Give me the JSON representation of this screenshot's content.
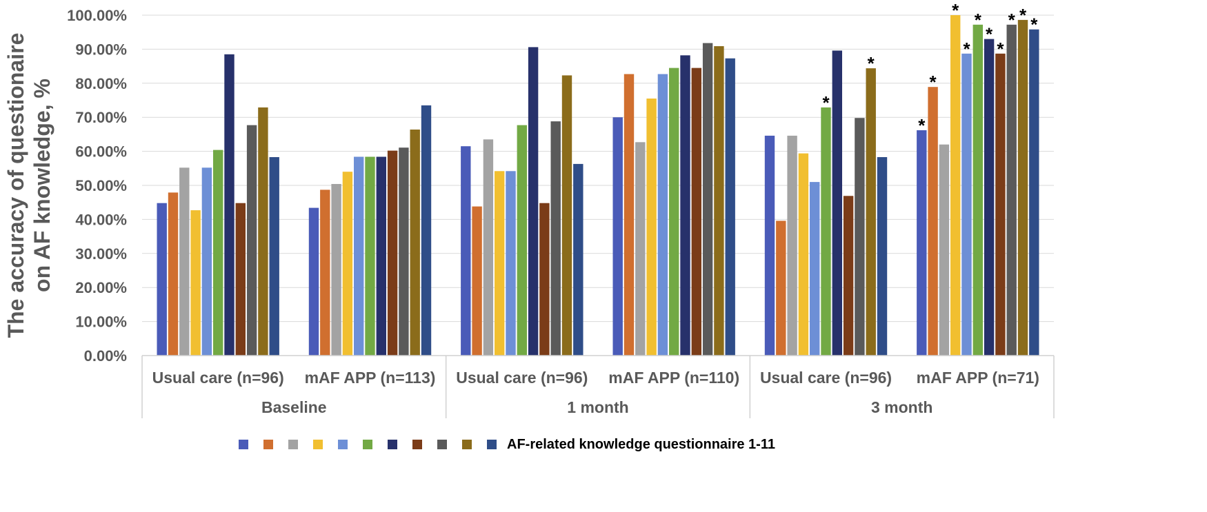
{
  "chart_data": {
    "type": "bar",
    "ylabel": [
      "The accuracy of questionaire",
      "on AF knowledge, %"
    ],
    "ylim": [
      0,
      100
    ],
    "yticks": [
      "0.00%",
      "10.00%",
      "20.00%",
      "30.00%",
      "40.00%",
      "50.00%",
      "60.00%",
      "70.00%",
      "80.00%",
      "90.00%",
      "100.00%"
    ],
    "grid": true,
    "periods": [
      "Baseline",
      "1 month",
      "3 month"
    ],
    "categories": [
      "Usual care (n=96)",
      "mAF APP (n=113)",
      "Usual care (n=96)",
      "mAF APP (n=110)",
      "Usual care (n=96)",
      "mAF APP (n=71)"
    ],
    "colors": [
      "#4a5bb8",
      "#d06f2f",
      "#a3a3a3",
      "#f1bf30",
      "#6d8fd6",
      "#72a944",
      "#27316b",
      "#7b3c18",
      "#5a5a5a",
      "#8b6c1b",
      "#2f4d88"
    ],
    "series": [
      {
        "values": [
          44.8,
          43.4,
          61.5,
          70.0,
          64.6,
          66.2
        ]
      },
      {
        "values": [
          47.9,
          48.7,
          43.8,
          82.7,
          39.6,
          78.9
        ]
      },
      {
        "values": [
          55.2,
          50.4,
          63.5,
          62.7,
          64.6,
          62.0
        ]
      },
      {
        "values": [
          42.7,
          54.0,
          54.2,
          75.5,
          59.4,
          100.0
        ]
      },
      {
        "values": [
          55.2,
          58.4,
          54.2,
          82.7,
          51.0,
          88.7
        ]
      },
      {
        "values": [
          60.4,
          58.4,
          67.7,
          84.5,
          72.9,
          97.2
        ]
      },
      {
        "values": [
          88.5,
          58.4,
          90.6,
          88.2,
          89.6,
          93.0
        ]
      },
      {
        "values": [
          44.8,
          60.2,
          44.8,
          84.5,
          46.9,
          88.7
        ]
      },
      {
        "values": [
          67.7,
          61.1,
          68.8,
          91.8,
          69.8,
          97.2
        ]
      },
      {
        "values": [
          72.9,
          66.4,
          82.3,
          90.9,
          84.4,
          98.6
        ]
      },
      {
        "values": [
          58.3,
          73.5,
          56.3,
          87.3,
          58.3,
          95.8
        ]
      }
    ],
    "significance": [
      [
        false,
        false,
        false,
        false,
        false,
        false
      ],
      [
        false,
        false,
        false,
        false,
        false,
        false
      ],
      [
        false,
        false,
        false,
        false,
        false,
        false
      ],
      [
        false,
        false,
        false,
        false,
        false,
        false
      ],
      [
        false,
        false,
        false,
        false,
        false,
        false
      ],
      [
        false,
        false,
        false,
        false,
        true,
        false
      ],
      [
        false,
        false,
        false,
        false,
        false,
        false
      ],
      [
        false,
        false,
        false,
        false,
        false,
        false
      ],
      [
        false,
        false,
        false,
        false,
        false,
        false
      ],
      [
        false,
        false,
        false,
        false,
        true,
        false
      ],
      [
        false,
        false,
        false,
        false,
        false,
        false
      ]
    ],
    "significance_last_group": [
      true,
      true,
      false,
      true,
      true,
      true,
      true,
      true,
      true,
      true,
      true
    ],
    "significance_marker": "*",
    "legend": {
      "label": "AF-related knowledge questionnaire 1-11",
      "placement": "bottom"
    }
  }
}
